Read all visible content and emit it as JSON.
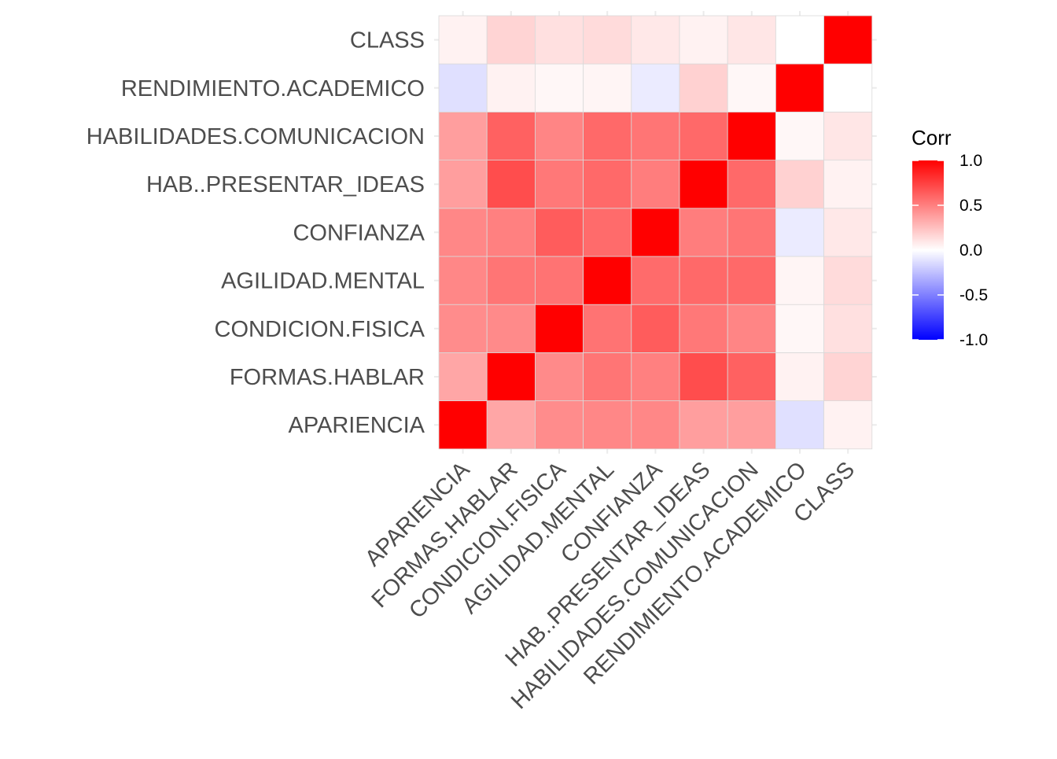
{
  "chart_data": {
    "type": "heatmap",
    "title": "",
    "xlabel": "",
    "ylabel": "",
    "variables": [
      "APARIENCIA",
      "FORMAS.HABLAR",
      "CONDICION.FISICA",
      "AGILIDAD.MENTAL",
      "CONFIANZA",
      "HAB..PRESENTAR_IDEAS",
      "HABILIDADES.COMUNICACION",
      "RENDIMIENTO.ACADEMICO",
      "CLASS"
    ],
    "matrix": [
      [
        1.0,
        0.35,
        0.45,
        0.47,
        0.47,
        0.38,
        0.38,
        -0.12,
        0.05
      ],
      [
        0.35,
        1.0,
        0.46,
        0.54,
        0.5,
        0.7,
        0.62,
        0.05,
        0.17
      ],
      [
        0.45,
        0.46,
        1.0,
        0.55,
        0.64,
        0.53,
        0.48,
        0.03,
        0.12
      ],
      [
        0.47,
        0.54,
        0.55,
        1.0,
        0.58,
        0.59,
        0.59,
        0.04,
        0.14
      ],
      [
        0.47,
        0.5,
        0.64,
        0.58,
        1.0,
        0.51,
        0.54,
        -0.08,
        0.09
      ],
      [
        0.38,
        0.7,
        0.53,
        0.59,
        0.51,
        1.0,
        0.59,
        0.18,
        0.05
      ],
      [
        0.38,
        0.62,
        0.48,
        0.59,
        0.54,
        0.59,
        1.0,
        0.03,
        0.1
      ],
      [
        -0.12,
        0.05,
        0.03,
        0.04,
        -0.08,
        0.18,
        0.03,
        1.0,
        0.0
      ],
      [
        0.05,
        0.17,
        0.12,
        0.14,
        0.09,
        0.05,
        0.1,
        0.0,
        1.0
      ]
    ],
    "color_scale": {
      "low": "#0000FF",
      "mid": "#FFFFFF",
      "high": "#FF0000",
      "limits": [
        -1.0,
        1.0
      ]
    },
    "legend": {
      "title": "Corr",
      "ticks": [
        "1.0",
        "0.5",
        "0.0",
        "-0.5",
        "-1.0"
      ],
      "tick_values": [
        1.0,
        0.5,
        0.0,
        -0.5,
        -1.0
      ],
      "position": "right"
    },
    "grid": true
  }
}
